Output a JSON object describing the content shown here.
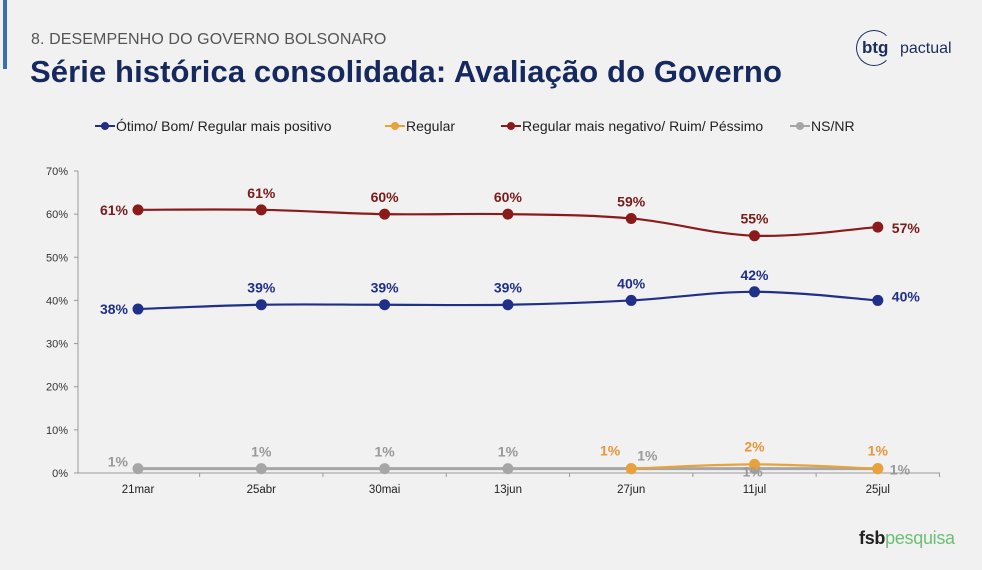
{
  "header": {
    "section": "8. DESEMPENHO DO GOVERNO BOLSONARO",
    "title": "Série histórica consolidada: Avaliação do Governo"
  },
  "logos": {
    "btg_bold": "btg",
    "btg_light": "pactual",
    "fsb_bold": "fsb",
    "fsb_light": "pesquisa"
  },
  "colors": {
    "positive": "#1f2f8a",
    "regular": "#e9a23b",
    "negative": "#8b1a1a",
    "nsnr": "#a6a6a6",
    "title": "#15295e"
  },
  "chart_data": {
    "type": "line",
    "title": "Série histórica consolidada: Avaliação do Governo",
    "xlabel": "",
    "ylabel": "",
    "categories": [
      "21mar",
      "25abr",
      "30mai",
      "13jun",
      "27jun",
      "11jul",
      "25jul"
    ],
    "ylim": [
      0,
      70
    ],
    "yticks": [
      0,
      10,
      20,
      30,
      40,
      50,
      60,
      70
    ],
    "ytick_labels": [
      "0%",
      "10%",
      "20%",
      "30%",
      "40%",
      "50%",
      "60%",
      "70%"
    ],
    "grid": false,
    "legend_position": "top",
    "series": [
      {
        "key": "positive",
        "name": "Ótimo/ Bom/ Regular mais positivo",
        "color": "#1f2f8a",
        "values": [
          38,
          39,
          39,
          39,
          40,
          42,
          40
        ],
        "labels": [
          "38%",
          "39%",
          "39%",
          "39%",
          "40%",
          "42%",
          "40%"
        ]
      },
      {
        "key": "regular",
        "name": "Regular",
        "color": "#e9a23b",
        "values": [
          null,
          null,
          null,
          null,
          1,
          2,
          1
        ],
        "labels": [
          null,
          null,
          null,
          null,
          "1%",
          "2%",
          "1%"
        ]
      },
      {
        "key": "negative",
        "name": "Regular mais negativo/ Ruim/ Péssimo",
        "color": "#8b1a1a",
        "values": [
          61,
          61,
          60,
          60,
          59,
          55,
          57
        ],
        "labels": [
          "61%",
          "61%",
          "60%",
          "60%",
          "59%",
          "55%",
          "57%"
        ]
      },
      {
        "key": "nsnr",
        "name": "NS/NR",
        "color": "#a6a6a6",
        "values": [
          1,
          1,
          1,
          1,
          1,
          1,
          1
        ],
        "labels": [
          "1%",
          "1%",
          "1%",
          "1%",
          "1%",
          "1%",
          "1%"
        ]
      }
    ]
  }
}
